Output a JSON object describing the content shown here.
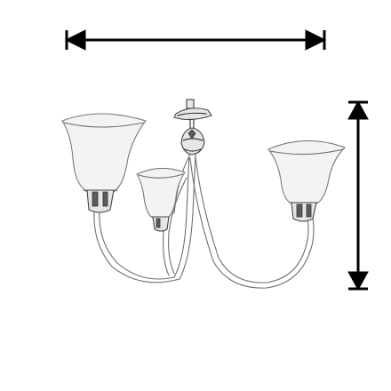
{
  "figure": {
    "subject": "three-arm-chandelier-dimension-sketch",
    "width_arrow": "horizontal-double-arrow",
    "height_arrow": "vertical-double-arrow"
  },
  "colors": {
    "arrow": "#000000",
    "sketch_line": "#6e6e6e",
    "metal_dark": "#3a3a3a",
    "shade_fill": "#f3f3f3",
    "background": "#ffffff"
  }
}
